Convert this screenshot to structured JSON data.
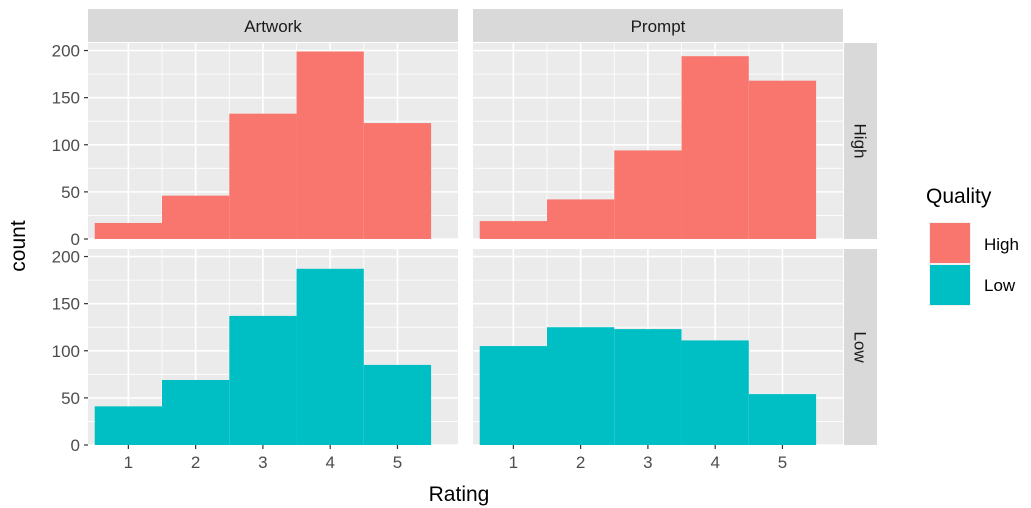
{
  "chart_data": {
    "type": "bar",
    "subtype": "faceted-histogram",
    "xlabel": "Rating",
    "ylabel": "count",
    "x_ticks": [
      1,
      2,
      3,
      4,
      5
    ],
    "y_ticks": [
      0,
      50,
      100,
      150,
      200
    ],
    "xlim": [
      0.4,
      5.9
    ],
    "ylim": [
      0,
      208
    ],
    "grid": true,
    "facet_columns": [
      "Artwork",
      "Prompt"
    ],
    "facet_rows": [
      "High",
      "Low"
    ],
    "legend": {
      "title": "Quality",
      "position": "right",
      "entries": [
        {
          "label": "High",
          "color": "#F8766D"
        },
        {
          "label": "Low",
          "color": "#00BFC4"
        }
      ]
    },
    "categories": [
      1,
      2,
      3,
      4,
      5
    ],
    "panels": [
      {
        "column": "Artwork",
        "row": "High",
        "series": "High",
        "values": [
          17,
          46,
          133,
          199,
          123
        ]
      },
      {
        "column": "Prompt",
        "row": "High",
        "series": "High",
        "values": [
          19,
          42,
          94,
          194,
          168
        ]
      },
      {
        "column": "Artwork",
        "row": "Low",
        "series": "Low",
        "values": [
          41,
          69,
          137,
          187,
          85
        ]
      },
      {
        "column": "Prompt",
        "row": "Low",
        "series": "Low",
        "values": [
          105,
          125,
          123,
          111,
          54
        ]
      }
    ]
  }
}
